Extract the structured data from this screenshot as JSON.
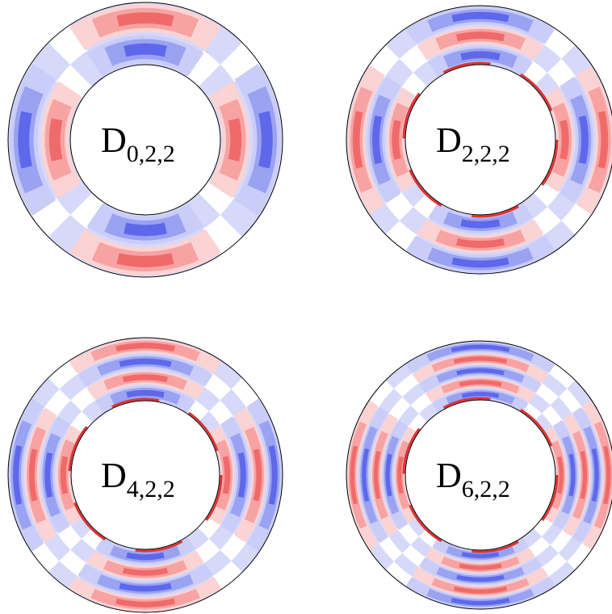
{
  "panels": [
    {
      "label": "D",
      "subscript": "0,2,2"
    },
    {
      "label": "D",
      "subscript": "2,2,2"
    },
    {
      "label": "D",
      "subscript": "4,2,2"
    },
    {
      "label": "D",
      "subscript": "6,2,2"
    }
  ]
}
